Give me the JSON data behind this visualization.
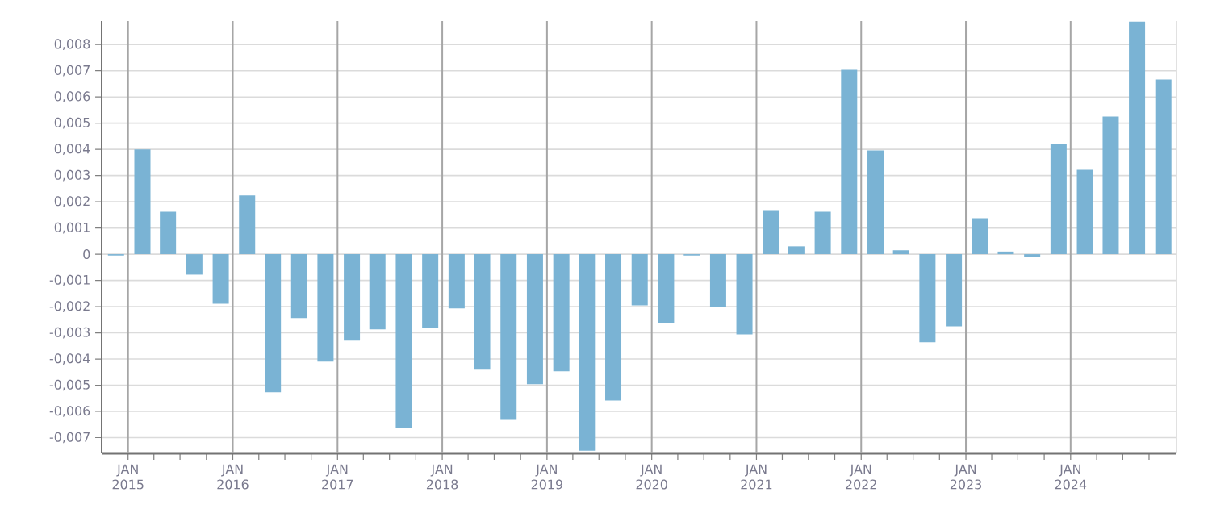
{
  "chart_data": {
    "type": "bar",
    "x": [
      "2014-11-20",
      "2015-02-20",
      "2015-05-20",
      "2015-08-20",
      "2015-11-20",
      "2016-02-20",
      "2016-05-20",
      "2016-08-20",
      "2016-11-20",
      "2017-02-20",
      "2017-05-20",
      "2017-08-20",
      "2017-11-20",
      "2018-02-20",
      "2018-05-20",
      "2018-08-20",
      "2018-11-20",
      "2019-02-20",
      "2019-05-20",
      "2019-08-20",
      "2019-11-20",
      "2020-02-20",
      "2020-05-20",
      "2020-08-20",
      "2020-11-20",
      "2021-02-20",
      "2021-05-20",
      "2021-08-20",
      "2021-11-20",
      "2022-02-20",
      "2022-05-20",
      "2022-08-20",
      "2022-11-20",
      "2023-02-20",
      "2023-05-20",
      "2023-08-20",
      "2023-11-20",
      "2024-02-20",
      "2024-05-20",
      "2024-08-20",
      "2024-11-20"
    ],
    "values": [
      -5e-05,
      0.004,
      0.00162,
      -0.00078,
      -0.00189,
      0.00224,
      -0.00527,
      -0.00244,
      -0.0041,
      -0.0033,
      -0.00287,
      -0.00663,
      -0.00281,
      -0.00207,
      -0.00441,
      -0.00632,
      -0.00496,
      -0.00447,
      -0.0075,
      -0.00558,
      -0.00195,
      -0.00263,
      -5e-05,
      -0.00201,
      -0.00306,
      0.00168,
      0.0003,
      0.00162,
      0.00704,
      0.00396,
      0.00015,
      -0.00336,
      -0.00275,
      0.00137,
      0.0001,
      -0.0001,
      0.0042,
      0.00322,
      0.00525,
      0.00888,
      0.00667
    ],
    "color": "#7ab3d4",
    "xlim": [
      "2014-10-01",
      "2025-01-05"
    ],
    "xticks": [
      {
        "value": "2015-01-01",
        "label": "JAN 2015"
      },
      {
        "value": "2015-04-01",
        "label": null
      },
      {
        "value": "2015-07-01",
        "label": null
      },
      {
        "value": "2015-10-01",
        "label": null
      },
      {
        "value": "2016-01-01",
        "label": "JAN 2016"
      },
      {
        "value": "2016-04-01",
        "label": null
      },
      {
        "value": "2016-07-01",
        "label": null
      },
      {
        "value": "2016-10-01",
        "label": null
      },
      {
        "value": "2017-01-01",
        "label": "JAN 2017"
      },
      {
        "value": "2017-04-01",
        "label": null
      },
      {
        "value": "2017-07-01",
        "label": null
      },
      {
        "value": "2017-10-01",
        "label": null
      },
      {
        "value": "2018-01-01",
        "label": "JAN 2018"
      },
      {
        "value": "2018-04-01",
        "label": null
      },
      {
        "value": "2018-07-01",
        "label": null
      },
      {
        "value": "2018-10-01",
        "label": null
      },
      {
        "value": "2019-01-01",
        "label": "JAN 2019"
      },
      {
        "value": "2019-04-01",
        "label": null
      },
      {
        "value": "2019-07-01",
        "label": null
      },
      {
        "value": "2019-10-01",
        "label": null
      },
      {
        "value": "2020-01-01",
        "label": "JAN 2020"
      },
      {
        "value": "2020-04-01",
        "label": null
      },
      {
        "value": "2020-07-01",
        "label": null
      },
      {
        "value": "2020-10-01",
        "label": null
      },
      {
        "value": "2021-01-01",
        "label": "JAN 2021"
      },
      {
        "value": "2021-04-01",
        "label": null
      },
      {
        "value": "2021-07-01",
        "label": null
      },
      {
        "value": "2021-10-01",
        "label": null
      },
      {
        "value": "2022-01-01",
        "label": "JAN 2022"
      },
      {
        "value": "2022-04-01",
        "label": null
      },
      {
        "value": "2022-07-01",
        "label": null
      },
      {
        "value": "2022-10-01",
        "label": null
      },
      {
        "value": "2023-01-01",
        "label": "JAN 2023"
      },
      {
        "value": "2023-04-01",
        "label": null
      },
      {
        "value": "2023-07-01",
        "label": null
      },
      {
        "value": "2023-10-01",
        "label": null
      },
      {
        "value": "2024-01-01",
        "label": "JAN 2024"
      },
      {
        "value": "2024-04-01",
        "label": null
      },
      {
        "value": "2024-07-01",
        "label": null
      },
      {
        "value": "2024-10-01",
        "label": null
      }
    ],
    "ylim": [
      -0.0076,
      0.0089
    ],
    "yticks": [
      {
        "value": -0.007,
        "label": "-0,007"
      },
      {
        "value": -0.006,
        "label": "-0,006"
      },
      {
        "value": -0.005,
        "label": "-0,005"
      },
      {
        "value": -0.004,
        "label": "-0,004"
      },
      {
        "value": -0.003,
        "label": "-0,003"
      },
      {
        "value": -0.002,
        "label": "-0,002"
      },
      {
        "value": -0.001,
        "label": "-0,001"
      },
      {
        "value": 0,
        "label": "0"
      },
      {
        "value": 0.001,
        "label": "0,001"
      },
      {
        "value": 0.002,
        "label": "0,002"
      },
      {
        "value": 0.003,
        "label": "0,003"
      },
      {
        "value": 0.004,
        "label": "0,004"
      },
      {
        "value": 0.005,
        "label": "0,005"
      },
      {
        "value": 0.006,
        "label": "0,006"
      },
      {
        "value": 0.007,
        "label": "0,007"
      },
      {
        "value": 0.008,
        "label": "0,008"
      }
    ],
    "grid": true
  }
}
